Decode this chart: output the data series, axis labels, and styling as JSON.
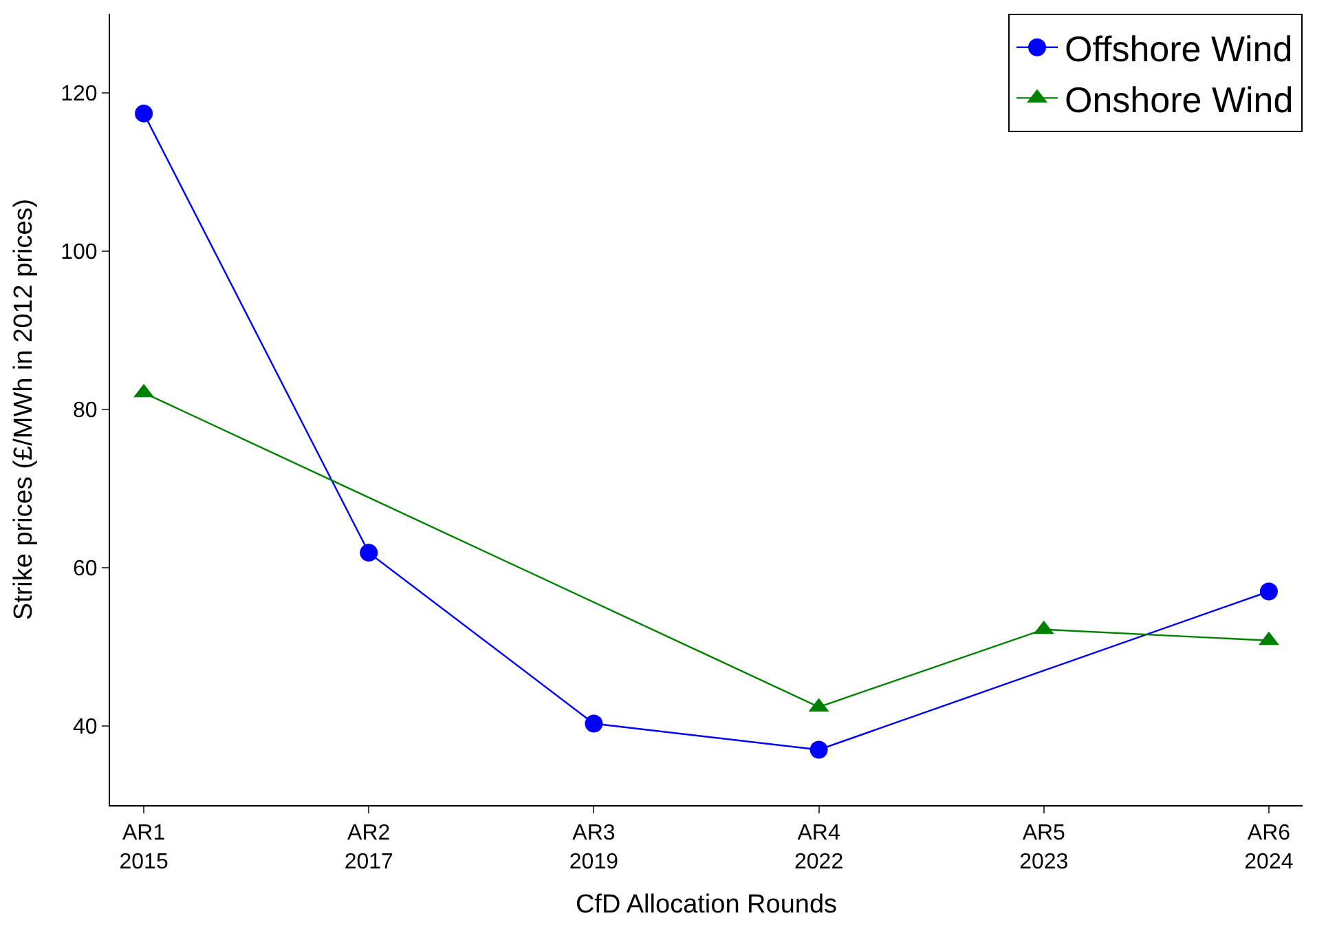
{
  "chart_data": {
    "type": "line",
    "xlabel": "CfD Allocation Rounds",
    "ylabel": "Strike prices (£/MWh in 2012 prices)",
    "categories": [
      "AR1\n2015",
      "AR2\n2017",
      "AR3\n2019",
      "AR4\n2022",
      "AR5\n2023",
      "AR6\n2024"
    ],
    "series": [
      {
        "name": "Offshore Wind",
        "color": "#0000ff",
        "marker": "circle",
        "values": [
          117.4,
          61.9,
          40.3,
          37.0,
          null,
          57.0
        ]
      },
      {
        "name": "Onshore Wind",
        "color": "#008000",
        "marker": "triangle",
        "values": [
          82.1,
          null,
          null,
          42.4,
          52.2,
          50.8
        ]
      }
    ],
    "ylim": [
      30,
      130
    ],
    "yticks": [
      40,
      60,
      80,
      100,
      120
    ],
    "legend": "top right",
    "line_style": "solid"
  }
}
